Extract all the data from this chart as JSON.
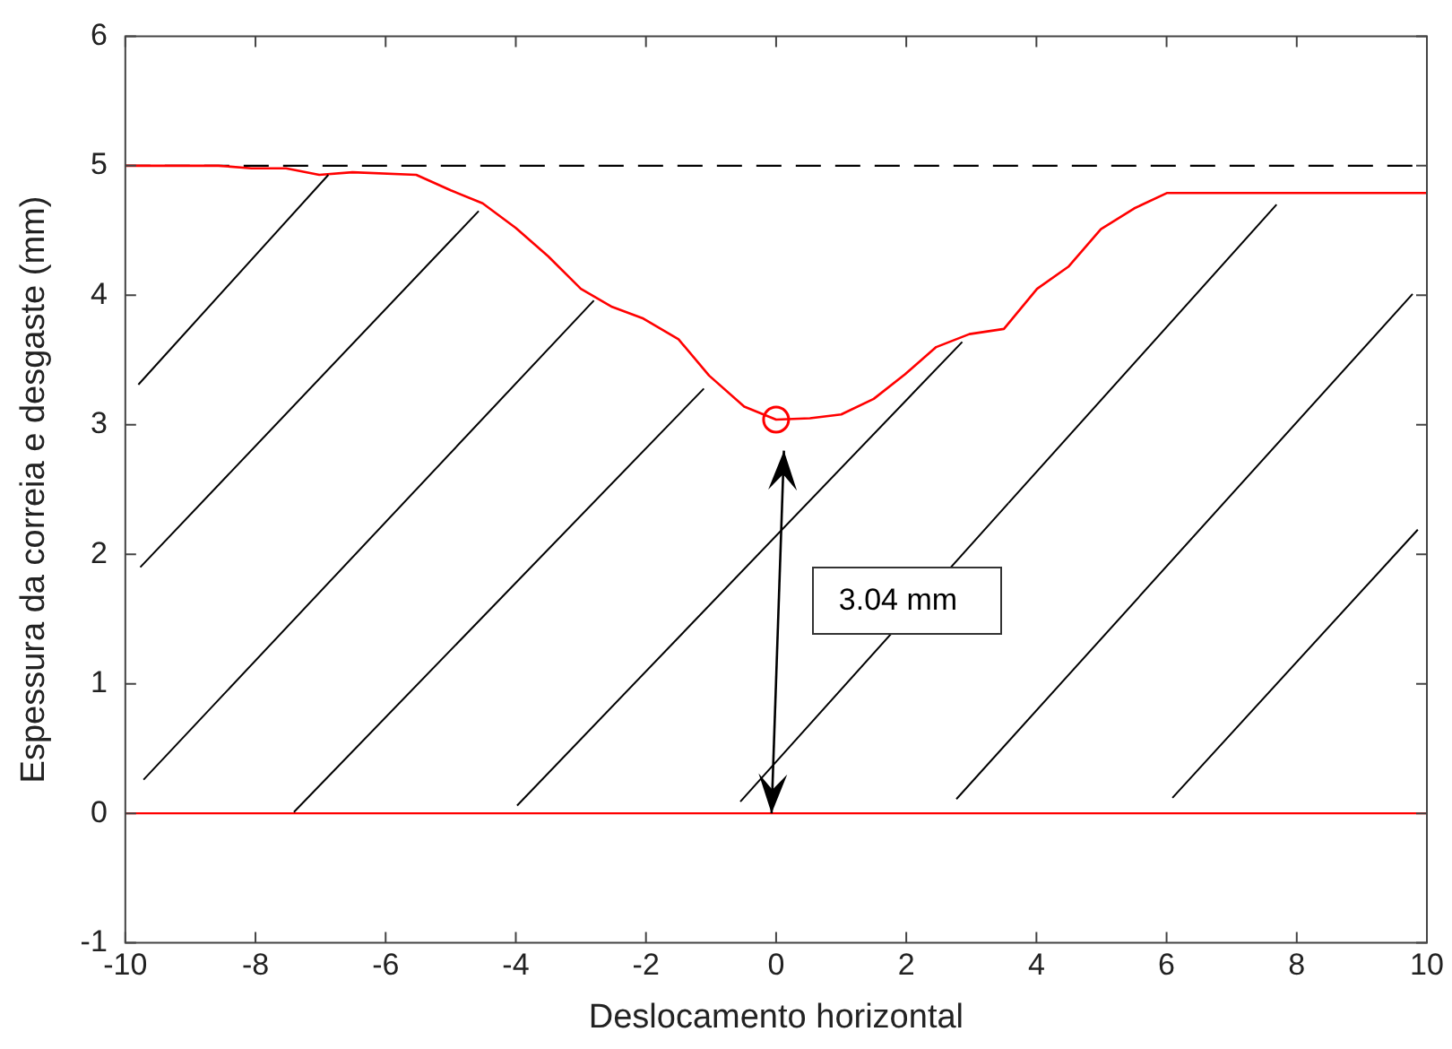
{
  "chart_data": {
    "type": "line",
    "xlabel": "Deslocamento horizontal",
    "ylabel": "Espessura da correia e desgaste (mm)",
    "xlim": [
      -10,
      10
    ],
    "xticks": [
      -10,
      -8,
      -6,
      -4,
      -2,
      0,
      2,
      4,
      6,
      8,
      10
    ],
    "ylim": [
      -1,
      6
    ],
    "yticks": [
      -1,
      0,
      1,
      2,
      3,
      4,
      5,
      6
    ],
    "grid": false,
    "legend": false,
    "series": [
      {
        "type": "line",
        "color": "#ff0000",
        "marker": "none",
        "line_style": "solid",
        "x": [
          -10,
          -8.57,
          -8.06,
          -7.53,
          -7.02,
          -6.51,
          -5.53,
          -5.0,
          -4.51,
          -4.0,
          -3.5,
          -3.0,
          -2.52,
          -2.04,
          -1.5,
          -1.03,
          -0.49,
          0,
          0.52,
          1.0,
          1.5,
          1.98,
          2.46,
          2.97,
          3.5,
          4.01,
          4.49,
          4.99,
          5.5,
          6.01,
          7.33,
          10
        ],
        "values": [
          5.0,
          5.0,
          4.98,
          4.98,
          4.93,
          4.95,
          4.93,
          4.81,
          4.71,
          4.52,
          4.3,
          4.05,
          3.91,
          3.82,
          3.66,
          3.38,
          3.14,
          3.04,
          3.05,
          3.08,
          3.2,
          3.39,
          3.6,
          3.7,
          3.74,
          4.05,
          4.22,
          4.51,
          4.67,
          4.79,
          4.79,
          4.79
        ]
      },
      {
        "type": "scatter",
        "color": "#ff0000",
        "marker": "circle",
        "x": [
          0
        ],
        "values": [
          3.04
        ]
      }
    ],
    "ref_lines": [
      {
        "axis": "y",
        "value": 5,
        "color": "#000000",
        "line_style": "dashed"
      },
      {
        "axis": "y",
        "value": 0,
        "color": "#ff0000",
        "line_style": "solid"
      }
    ],
    "annotations": [
      "3.04 mm"
    ]
  }
}
